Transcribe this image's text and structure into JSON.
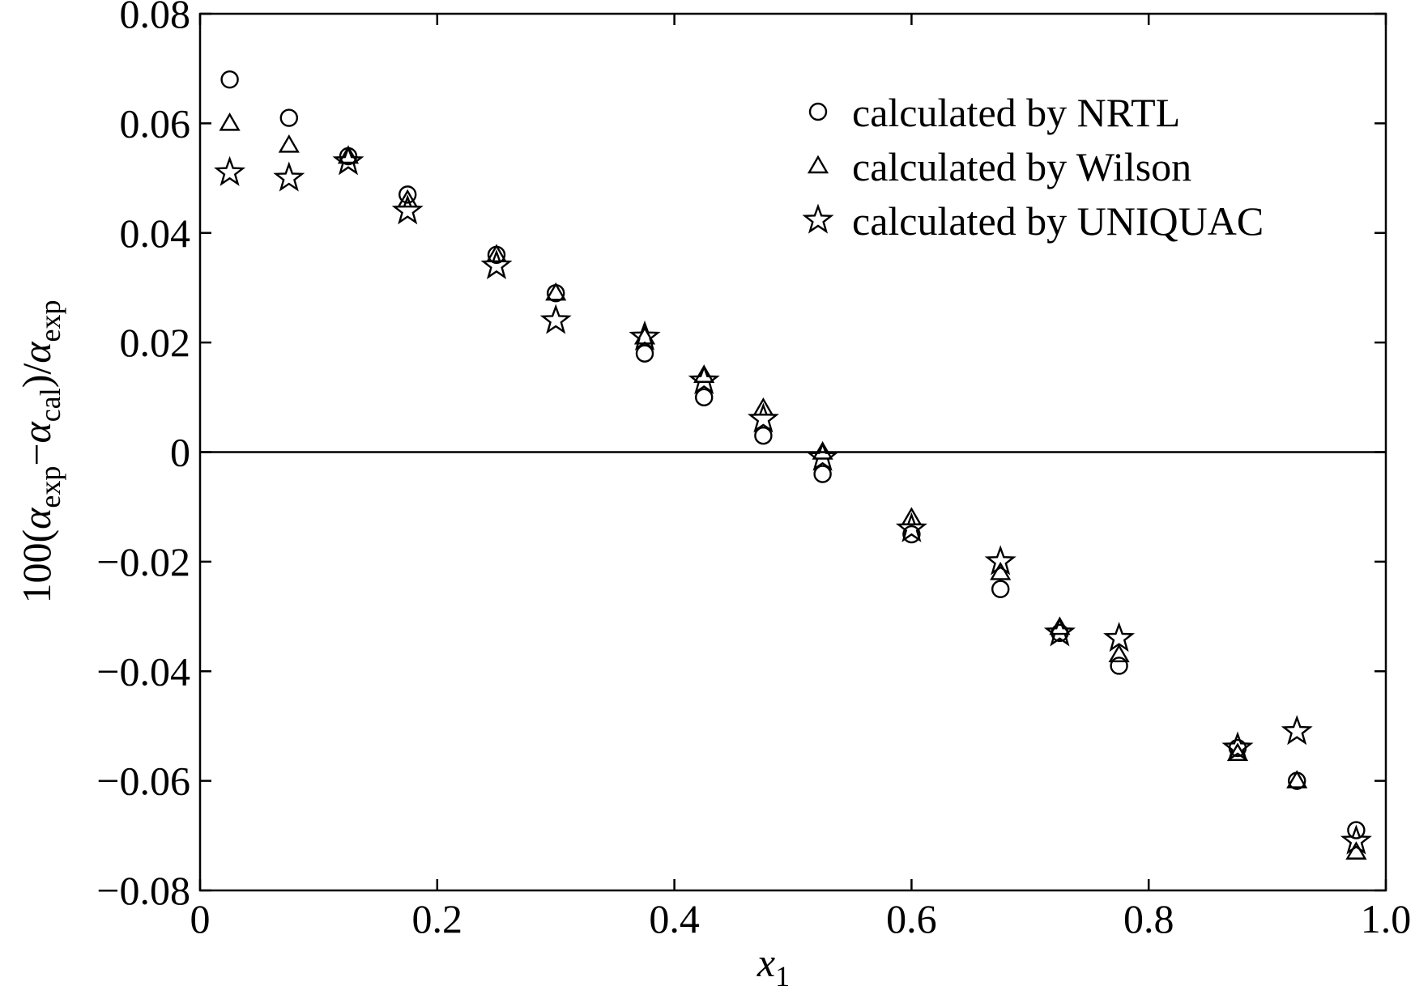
{
  "chart_data": {
    "type": "scatter",
    "xlim": [
      0,
      1.0
    ],
    "ylim": [
      -0.08,
      0.08
    ],
    "xticks": [
      "0",
      "0.2",
      "0.4",
      "0.6",
      "0.8",
      "1.0"
    ],
    "xtick_values": [
      0,
      0.2,
      0.4,
      0.6,
      0.8,
      1.0
    ],
    "yticks": [
      "0.08",
      "0.06",
      "0.04",
      "0.02",
      "0",
      "−0.02",
      "−0.04",
      "−0.06",
      "−0.08"
    ],
    "ytick_values": [
      0.08,
      0.06,
      0.04,
      0.02,
      0,
      -0.02,
      -0.04,
      -0.06,
      -0.08
    ],
    "xlabel": {
      "base": "x",
      "sub": "1"
    },
    "ylabel": {
      "prefix": "100(",
      "a1": "α",
      "a1_sub": "exp",
      "minus": "−",
      "a2": "α",
      "a2_sub": "cal",
      "close": ")/",
      "a3": "α",
      "a3_sub": "exp"
    },
    "zero_line": true,
    "grid": false,
    "legend_position": "top-right",
    "series": [
      {
        "name": "calculated by NRTL",
        "marker": "circle",
        "x": [
          0.025,
          0.075,
          0.125,
          0.175,
          0.25,
          0.3,
          0.375,
          0.425,
          0.475,
          0.525,
          0.6,
          0.675,
          0.725,
          0.775,
          0.875,
          0.925,
          0.975
        ],
        "y": [
          0.068,
          0.061,
          0.054,
          0.047,
          0.036,
          0.029,
          0.018,
          0.01,
          0.003,
          -0.004,
          -0.015,
          -0.025,
          -0.033,
          -0.039,
          -0.054,
          -0.06,
          -0.069
        ]
      },
      {
        "name": "calculated by Wilson",
        "marker": "triangle",
        "x": [
          0.025,
          0.075,
          0.125,
          0.175,
          0.25,
          0.3,
          0.375,
          0.425,
          0.475,
          0.525,
          0.6,
          0.675,
          0.725,
          0.775,
          0.875,
          0.925,
          0.975
        ],
        "y": [
          0.06,
          0.056,
          0.054,
          0.046,
          0.036,
          0.029,
          0.021,
          0.014,
          0.008,
          0.0,
          -0.012,
          -0.022,
          -0.032,
          -0.037,
          -0.055,
          -0.06,
          -0.073
        ]
      },
      {
        "name": "calculated by UNIQUAC",
        "marker": "star",
        "x": [
          0.025,
          0.075,
          0.125,
          0.175,
          0.25,
          0.3,
          0.375,
          0.425,
          0.475,
          0.525,
          0.6,
          0.675,
          0.725,
          0.775,
          0.875,
          0.925,
          0.975
        ],
        "y": [
          0.051,
          0.05,
          0.053,
          0.044,
          0.034,
          0.024,
          0.021,
          0.013,
          0.006,
          -0.001,
          -0.014,
          -0.02,
          -0.033,
          -0.034,
          -0.054,
          -0.051,
          -0.071
        ]
      }
    ]
  }
}
